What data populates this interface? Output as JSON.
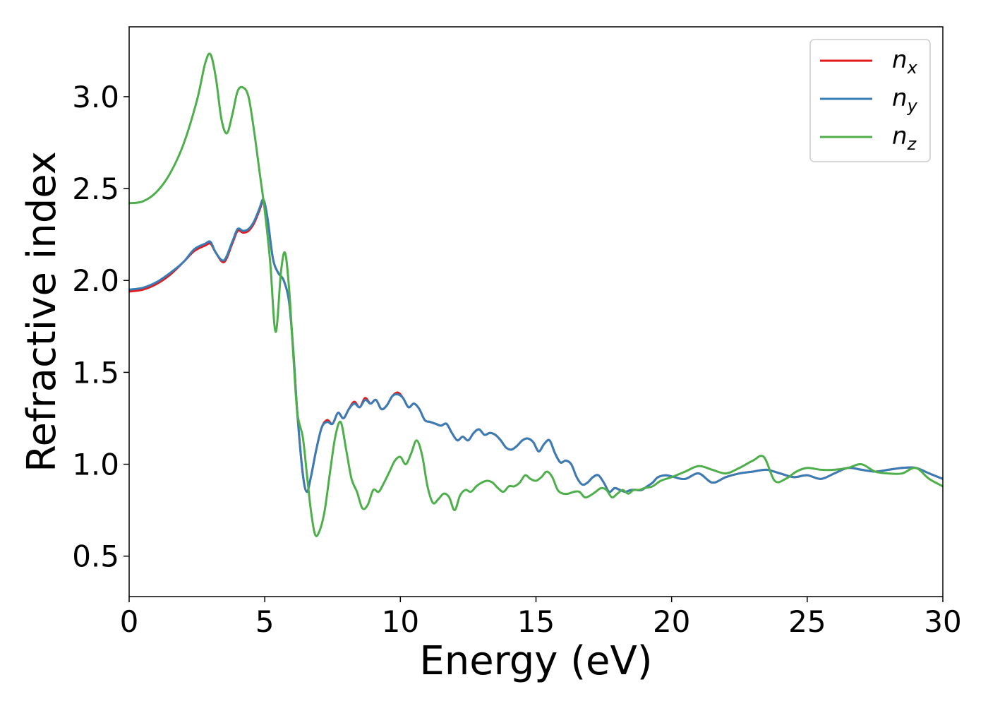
{
  "chart_data": {
    "type": "line",
    "title": "",
    "xlabel": "Energy (eV)",
    "ylabel": "Refractive index",
    "xlim": [
      0,
      30
    ],
    "ylim": [
      0.28,
      3.38
    ],
    "xticks": [
      0,
      5,
      10,
      15,
      20,
      25,
      30
    ],
    "yticks": [
      0.5,
      1.0,
      1.5,
      2.0,
      2.5,
      3.0
    ],
    "xtick_labels": [
      "0",
      "5",
      "10",
      "15",
      "20",
      "25",
      "30"
    ],
    "ytick_labels": [
      "0.5",
      "1.0",
      "1.5",
      "2.0",
      "2.5",
      "3.0"
    ],
    "grid": false,
    "legend_position": "top-right",
    "series": [
      {
        "name": "n_x",
        "label_base": "n",
        "label_sub": "x",
        "color": "#e41a1c",
        "x": [
          0,
          0.5,
          1,
          1.5,
          2,
          2.4,
          2.8,
          3.0,
          3.2,
          3.5,
          3.8,
          4.0,
          4.2,
          4.4,
          4.6,
          4.8,
          4.95,
          5.1,
          5.3,
          5.5,
          5.7,
          5.9,
          6.05,
          6.2,
          6.4,
          6.55,
          6.7,
          6.9,
          7.1,
          7.3,
          7.5,
          7.7,
          7.9,
          8.1,
          8.3,
          8.5,
          8.7,
          8.9,
          9.1,
          9.3,
          9.5,
          9.7,
          9.9,
          10.1,
          10.3,
          10.5,
          10.7,
          10.9,
          11.1,
          11.3,
          11.5,
          11.7,
          11.9,
          12.1,
          12.3,
          12.5,
          12.7,
          12.9,
          13.1,
          13.3,
          13.5,
          13.7,
          13.9,
          14.1,
          14.3,
          14.5,
          14.7,
          14.9,
          15.1,
          15.3,
          15.5,
          15.7,
          15.9,
          16.1,
          16.3,
          16.5,
          16.7,
          16.9,
          17.1,
          17.3,
          17.5,
          17.7,
          17.9,
          18.1,
          18.3,
          18.5,
          18.7,
          18.9,
          19.1,
          19.3,
          19.5,
          19.8,
          20.1,
          20.5,
          21,
          21.5,
          22,
          22.5,
          23,
          23.5,
          24,
          24.5,
          25,
          25.5,
          26,
          26.5,
          27,
          27.5,
          28,
          28.5,
          29,
          29.5,
          30
        ],
        "y": [
          1.94,
          1.95,
          1.98,
          2.03,
          2.1,
          2.16,
          2.19,
          2.2,
          2.15,
          2.1,
          2.2,
          2.27,
          2.26,
          2.27,
          2.31,
          2.38,
          2.43,
          2.34,
          2.12,
          2.04,
          2.0,
          1.88,
          1.62,
          1.28,
          0.95,
          0.85,
          0.93,
          1.08,
          1.2,
          1.24,
          1.22,
          1.28,
          1.25,
          1.3,
          1.34,
          1.31,
          1.36,
          1.33,
          1.35,
          1.3,
          1.32,
          1.37,
          1.39,
          1.36,
          1.31,
          1.33,
          1.3,
          1.24,
          1.23,
          1.22,
          1.21,
          1.22,
          1.17,
          1.13,
          1.15,
          1.13,
          1.17,
          1.19,
          1.16,
          1.17,
          1.16,
          1.13,
          1.09,
          1.08,
          1.1,
          1.13,
          1.14,
          1.12,
          1.07,
          1.11,
          1.13,
          1.06,
          1.01,
          1.02,
          1.0,
          0.93,
          0.89,
          0.9,
          0.93,
          0.94,
          0.9,
          0.85,
          0.87,
          0.86,
          0.85,
          0.86,
          0.86,
          0.86,
          0.88,
          0.9,
          0.93,
          0.94,
          0.93,
          0.92,
          0.95,
          0.9,
          0.93,
          0.95,
          0.96,
          0.97,
          0.95,
          0.93,
          0.94,
          0.92,
          0.95,
          0.98,
          0.97,
          0.96,
          0.97,
          0.98,
          0.98,
          0.95,
          0.92
        ],
        "note": ""
      },
      {
        "name": "n_y",
        "label_base": "n",
        "label_sub": "y",
        "color": "#377eb8",
        "x": [
          0,
          0.5,
          1,
          1.5,
          2,
          2.4,
          2.8,
          3.0,
          3.2,
          3.5,
          3.8,
          4.0,
          4.2,
          4.4,
          4.6,
          4.8,
          4.95,
          5.1,
          5.3,
          5.5,
          5.7,
          5.9,
          6.05,
          6.2,
          6.4,
          6.55,
          6.7,
          6.9,
          7.1,
          7.3,
          7.5,
          7.7,
          7.9,
          8.1,
          8.3,
          8.5,
          8.7,
          8.9,
          9.1,
          9.3,
          9.5,
          9.7,
          9.9,
          10.1,
          10.3,
          10.5,
          10.7,
          10.9,
          11.1,
          11.3,
          11.5,
          11.7,
          11.9,
          12.1,
          12.3,
          12.5,
          12.7,
          12.9,
          13.1,
          13.3,
          13.5,
          13.7,
          13.9,
          14.1,
          14.3,
          14.5,
          14.7,
          14.9,
          15.1,
          15.3,
          15.5,
          15.7,
          15.9,
          16.1,
          16.3,
          16.5,
          16.7,
          16.9,
          17.1,
          17.3,
          17.5,
          17.7,
          17.9,
          18.1,
          18.3,
          18.5,
          18.7,
          18.9,
          19.1,
          19.3,
          19.5,
          19.8,
          20.1,
          20.5,
          21,
          21.5,
          22,
          22.5,
          23,
          23.5,
          24,
          24.5,
          25,
          25.5,
          26,
          26.5,
          27,
          27.5,
          28,
          28.5,
          29,
          29.5,
          30
        ],
        "y": [
          1.95,
          1.96,
          1.99,
          2.04,
          2.1,
          2.17,
          2.2,
          2.21,
          2.15,
          2.11,
          2.21,
          2.28,
          2.27,
          2.28,
          2.32,
          2.39,
          2.44,
          2.34,
          2.12,
          2.04,
          2.0,
          1.88,
          1.62,
          1.28,
          0.95,
          0.85,
          0.93,
          1.08,
          1.2,
          1.23,
          1.22,
          1.28,
          1.25,
          1.3,
          1.33,
          1.31,
          1.35,
          1.33,
          1.35,
          1.3,
          1.32,
          1.37,
          1.38,
          1.36,
          1.31,
          1.33,
          1.3,
          1.24,
          1.23,
          1.22,
          1.21,
          1.22,
          1.17,
          1.13,
          1.15,
          1.13,
          1.17,
          1.19,
          1.16,
          1.17,
          1.16,
          1.13,
          1.09,
          1.08,
          1.1,
          1.13,
          1.14,
          1.12,
          1.07,
          1.11,
          1.13,
          1.06,
          1.01,
          1.02,
          1.0,
          0.93,
          0.89,
          0.9,
          0.93,
          0.94,
          0.9,
          0.85,
          0.87,
          0.86,
          0.85,
          0.86,
          0.86,
          0.86,
          0.88,
          0.9,
          0.93,
          0.94,
          0.93,
          0.92,
          0.95,
          0.9,
          0.93,
          0.95,
          0.96,
          0.97,
          0.95,
          0.93,
          0.94,
          0.92,
          0.95,
          0.98,
          0.97,
          0.96,
          0.97,
          0.98,
          0.98,
          0.95,
          0.92
        ],
        "note": ""
      },
      {
        "name": "n_z",
        "label_base": "n",
        "label_sub": "z",
        "color": "#4daf4a",
        "x": [
          0,
          0.5,
          1,
          1.5,
          2,
          2.5,
          2.8,
          3.0,
          3.2,
          3.4,
          3.6,
          3.8,
          4.0,
          4.2,
          4.4,
          4.6,
          4.8,
          5.0,
          5.2,
          5.4,
          5.6,
          5.75,
          5.9,
          6.05,
          6.2,
          6.4,
          6.55,
          6.7,
          6.85,
          7.0,
          7.2,
          7.4,
          7.6,
          7.8,
          8.0,
          8.2,
          8.4,
          8.6,
          8.8,
          9.0,
          9.2,
          9.4,
          9.6,
          9.8,
          10.0,
          10.2,
          10.4,
          10.6,
          10.8,
          11.0,
          11.2,
          11.4,
          11.6,
          11.8,
          12.0,
          12.2,
          12.4,
          12.6,
          12.8,
          13.0,
          13.2,
          13.4,
          13.6,
          13.8,
          14.0,
          14.2,
          14.4,
          14.6,
          14.8,
          15.0,
          15.2,
          15.4,
          15.6,
          15.8,
          16.0,
          16.2,
          16.4,
          16.6,
          16.8,
          17.0,
          17.2,
          17.4,
          17.6,
          17.8,
          18.0,
          18.2,
          18.4,
          18.6,
          18.8,
          19.0,
          19.3,
          19.6,
          20.0,
          20.5,
          21,
          21.5,
          22,
          22.5,
          23,
          23.4,
          23.8,
          24.2,
          24.6,
          25,
          25.5,
          26,
          26.5,
          27,
          27.5,
          28,
          28.5,
          29,
          29.5,
          30
        ],
        "y": [
          2.42,
          2.43,
          2.48,
          2.58,
          2.74,
          2.98,
          3.18,
          3.23,
          3.1,
          2.88,
          2.8,
          2.9,
          3.03,
          3.05,
          3.0,
          2.82,
          2.6,
          2.38,
          2.1,
          1.72,
          2.05,
          2.15,
          1.95,
          1.6,
          1.28,
          1.15,
          0.95,
          0.75,
          0.62,
          0.63,
          0.74,
          0.95,
          1.15,
          1.23,
          1.08,
          0.92,
          0.85,
          0.76,
          0.78,
          0.86,
          0.85,
          0.9,
          0.96,
          1.02,
          1.04,
          1.0,
          1.06,
          1.13,
          1.05,
          0.88,
          0.79,
          0.81,
          0.84,
          0.82,
          0.75,
          0.83,
          0.86,
          0.85,
          0.88,
          0.9,
          0.91,
          0.9,
          0.87,
          0.85,
          0.88,
          0.88,
          0.9,
          0.94,
          0.92,
          0.91,
          0.93,
          0.96,
          0.93,
          0.86,
          0.84,
          0.84,
          0.85,
          0.85,
          0.82,
          0.83,
          0.85,
          0.87,
          0.86,
          0.82,
          0.84,
          0.86,
          0.84,
          0.86,
          0.86,
          0.87,
          0.88,
          0.91,
          0.93,
          0.96,
          0.99,
          0.97,
          0.95,
          0.98,
          1.02,
          1.04,
          0.91,
          0.92,
          0.96,
          0.98,
          0.97,
          0.97,
          0.98,
          1.0,
          0.96,
          0.95,
          0.95,
          0.98,
          0.92,
          0.88
        ],
        "note": ""
      }
    ]
  }
}
